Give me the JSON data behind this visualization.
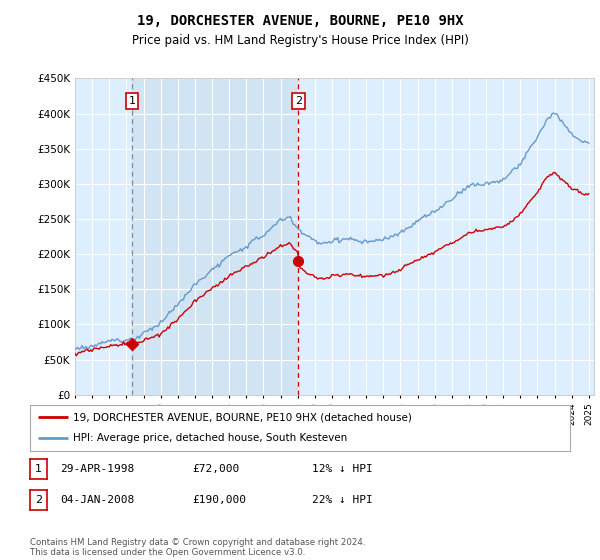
{
  "title": "19, DORCHESTER AVENUE, BOURNE, PE10 9HX",
  "subtitle": "Price paid vs. HM Land Registry's House Price Index (HPI)",
  "sale1_date": 1998.33,
  "sale1_price": 72000,
  "sale2_date": 2008.04,
  "sale2_price": 190000,
  "red_line_color": "#cc0000",
  "blue_line_color": "#6699cc",
  "vline1_color": "#aaaaaa",
  "vline2_color": "#cc0000",
  "grid_color": "#cccccc",
  "plot_bg": "#ddeeff",
  "shade_bg": "#ccddf0",
  "legend_label_red": "19, DORCHESTER AVENUE, BOURNE, PE10 9HX (detached house)",
  "legend_label_blue": "HPI: Average price, detached house, South Kesteven",
  "table_row1": [
    "1",
    "29-APR-1998",
    "£72,000",
    "12% ↓ HPI"
  ],
  "table_row2": [
    "2",
    "04-JAN-2008",
    "£190,000",
    "22% ↓ HPI"
  ],
  "footer": "Contains HM Land Registry data © Crown copyright and database right 2024.\nThis data is licensed under the Open Government Licence v3.0.",
  "y_ticks": [
    0,
    50000,
    100000,
    150000,
    200000,
    250000,
    300000,
    350000,
    400000,
    450000
  ],
  "y_max": 450000
}
